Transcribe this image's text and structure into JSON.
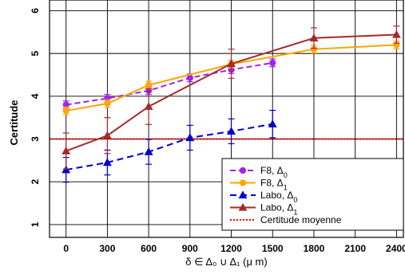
{
  "chart_data": {
    "type": "line",
    "title": "",
    "xlabel": "δ ∈ Δ₀ ∪ Δ₁  (μ m)",
    "ylabel": "Certitude",
    "x_ticks": [
      0,
      300,
      600,
      900,
      1200,
      1500,
      1800,
      2100,
      2400
    ],
    "y_ticks": [
      1,
      2,
      3,
      4,
      5,
      6
    ],
    "xlim": [
      -120,
      2450
    ],
    "ylim": [
      0.7,
      6.25
    ],
    "grid": true,
    "legend_position": "bottom-right",
    "series": [
      {
        "name": "F8, Δ₀",
        "name_main": "F8, Δ",
        "name_sub": "0",
        "color": "#a020f0",
        "dash": "7,4",
        "marker": "circle",
        "x": [
          0,
          300,
          600,
          900,
          1200,
          1500
        ],
        "y": [
          3.8,
          3.95,
          4.13,
          4.43,
          4.62,
          4.78
        ],
        "err": [
          0.09,
          0.09,
          0.09,
          0.09,
          0.09,
          0.09
        ]
      },
      {
        "name": "F8, Δ₁",
        "name_main": "F8, Δ",
        "name_sub": "1",
        "color": "#ffa500",
        "dash": "",
        "marker": "circle",
        "x": [
          0,
          300,
          600,
          1200,
          1800,
          2400
        ],
        "y": [
          3.66,
          3.83,
          4.26,
          4.75,
          5.1,
          5.2
        ],
        "err": [
          0.09,
          0.09,
          0.09,
          0.09,
          0.09,
          0.09
        ]
      },
      {
        "name": "Labo, Δ₀",
        "name_main": "Labo, Δ",
        "name_sub": "0",
        "color": "#0000cd",
        "dash": "8,5",
        "marker": "triangle",
        "x": [
          0,
          300,
          600,
          900,
          1200,
          1500
        ],
        "y": [
          2.28,
          2.45,
          2.7,
          3.03,
          3.18,
          3.35
        ],
        "err": [
          0.29,
          0.29,
          0.29,
          0.29,
          0.29,
          0.32
        ]
      },
      {
        "name": "Labo, Δ₁",
        "name_main": "Labo, Δ",
        "name_sub": "1",
        "color": "#a52a2a",
        "dash": "",
        "marker": "triangle",
        "x": [
          0,
          300,
          600,
          1200,
          1800,
          2400
        ],
        "y": [
          2.72,
          3.08,
          3.76,
          4.76,
          5.36,
          5.44
        ],
        "err": [
          0.42,
          0.42,
          0.42,
          0.34,
          0.24,
          0.2
        ]
      }
    ],
    "reference_line": {
      "name": "Certitude moyenne",
      "y": 3.0,
      "color": "#ff0000",
      "dash": "2,2"
    }
  }
}
